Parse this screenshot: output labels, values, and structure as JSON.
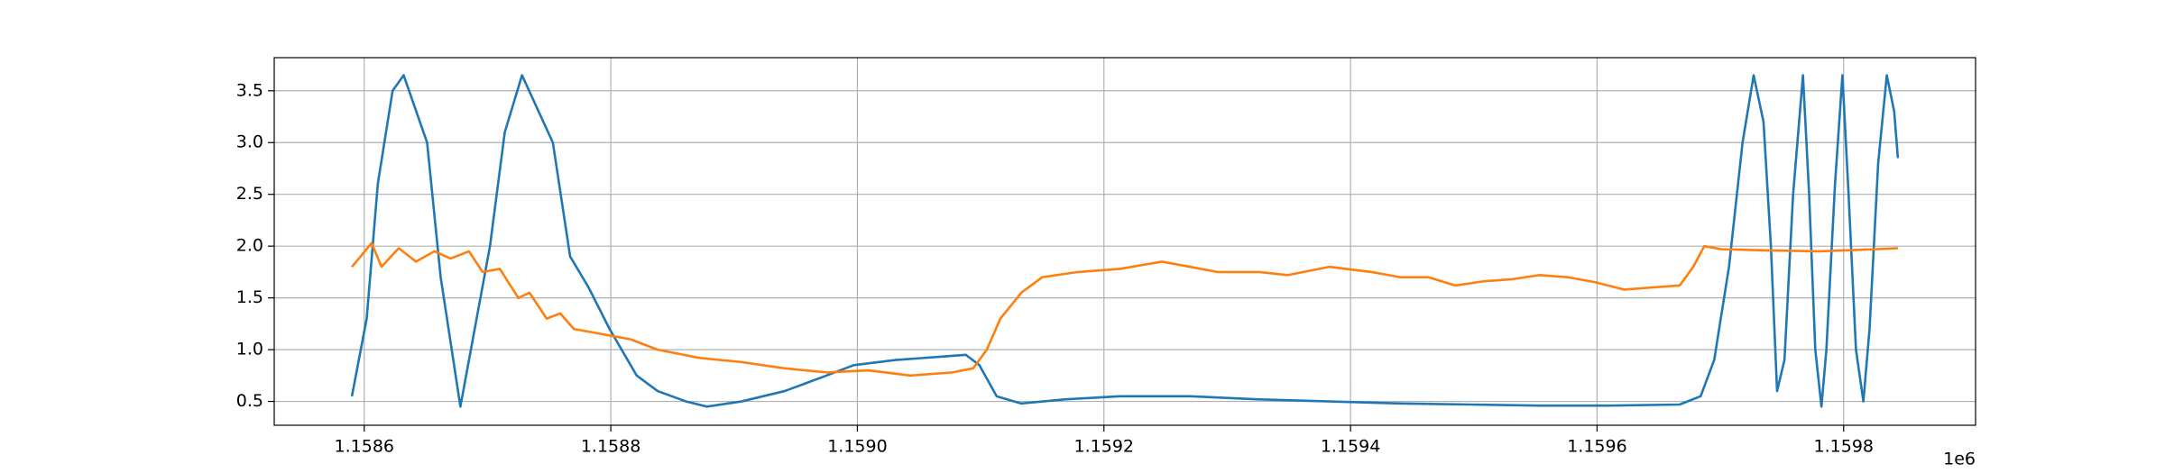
{
  "chart_data": {
    "type": "line",
    "x_offset_text": "1e6",
    "xlim": [
      1.158527,
      1.159907
    ],
    "ylim": [
      0.27,
      3.82
    ],
    "xticks": [
      1.1586,
      1.1588,
      1.159,
      1.1592,
      1.1594,
      1.1596,
      1.1598
    ],
    "xtick_labels": [
      "1.1586",
      "1.1588",
      "1.1590",
      "1.1592",
      "1.1594",
      "1.1596",
      "1.1598"
    ],
    "yticks": [
      0.5,
      {
        "value": 1,
        "label": "1.0"
      },
      1.5,
      {
        "value": 2,
        "label": "2.0"
      },
      2.5,
      {
        "value": 3,
        "label": "3.0"
      },
      3.5
    ],
    "grid": true,
    "series": [
      {
        "color": "#1f77b4",
        "x": [
          1.15859,
          1.158602,
          1.158611,
          1.158623,
          1.158632,
          1.158651,
          1.158662,
          1.158678,
          1.158702,
          1.158714,
          1.158728,
          1.158753,
          1.158767,
          1.158782,
          1.158799,
          1.158821,
          1.158838,
          1.158861,
          1.158878,
          1.158906,
          1.158941,
          1.158975,
          1.158997,
          1.159031,
          1.159065,
          1.159088,
          1.159099,
          1.159113,
          1.159133,
          1.159168,
          1.159213,
          1.15927,
          1.159326,
          1.159383,
          1.15944,
          1.159497,
          1.159553,
          1.15961,
          1.159667,
          1.159684,
          1.159695,
          1.159707,
          1.159718,
          1.159727,
          1.159735,
          1.159741,
          1.159746,
          1.159752,
          1.159759,
          1.159767,
          1.159772,
          1.159777,
          1.159782,
          1.159786,
          1.159793,
          1.159799,
          1.159804,
          1.15981,
          1.159816,
          1.159821,
          1.159828,
          1.159835,
          1.159841,
          1.159844
        ],
        "values": [
          0.55,
          1.3,
          2.6,
          3.5,
          3.65,
          3.0,
          1.7,
          0.45,
          2.0,
          3.1,
          3.65,
          3.0,
          1.9,
          1.6,
          1.2,
          0.75,
          0.6,
          0.5,
          0.45,
          0.5,
          0.6,
          0.75,
          0.85,
          0.9,
          0.93,
          0.95,
          0.85,
          0.55,
          0.48,
          0.52,
          0.55,
          0.55,
          0.52,
          0.5,
          0.48,
          0.47,
          0.46,
          0.46,
          0.47,
          0.55,
          0.9,
          1.8,
          3.0,
          3.65,
          3.2,
          2.0,
          0.6,
          0.9,
          2.5,
          3.65,
          2.5,
          1.0,
          0.45,
          1.0,
          2.6,
          3.65,
          2.5,
          1.0,
          0.5,
          1.2,
          2.8,
          3.65,
          3.3,
          2.85
        ]
      },
      {
        "color": "#ff7f0e",
        "x": [
          1.15859,
          1.158597,
          1.158606,
          1.158614,
          1.158628,
          1.158642,
          1.158657,
          1.15867,
          1.158685,
          1.158696,
          1.15871,
          1.158725,
          1.158734,
          1.158748,
          1.158759,
          1.15877,
          1.158793,
          1.158816,
          1.158838,
          1.158872,
          1.158906,
          1.158941,
          1.158975,
          1.159009,
          1.159043,
          1.159077,
          1.159094,
          1.159105,
          1.159116,
          1.159133,
          1.15915,
          1.159179,
          1.159213,
          1.159247,
          1.15927,
          1.159292,
          1.159326,
          1.159349,
          1.159383,
          1.159417,
          1.15944,
          1.159463,
          1.159485,
          1.159508,
          1.159531,
          1.159553,
          1.159576,
          1.159599,
          1.159622,
          1.159644,
          1.159667,
          1.159678,
          1.159687,
          1.159701,
          1.159735,
          1.15978,
          1.159826,
          1.159844
        ],
        "values": [
          1.8,
          1.9,
          2.03,
          1.8,
          1.98,
          1.85,
          1.95,
          1.88,
          1.95,
          1.75,
          1.78,
          1.5,
          1.55,
          1.3,
          1.35,
          1.2,
          1.15,
          1.1,
          1.0,
          0.92,
          0.88,
          0.82,
          0.78,
          0.8,
          0.75,
          0.78,
          0.82,
          1.0,
          1.3,
          1.55,
          1.7,
          1.75,
          1.78,
          1.85,
          1.8,
          1.75,
          1.75,
          1.72,
          1.8,
          1.75,
          1.7,
          1.7,
          1.62,
          1.66,
          1.68,
          1.72,
          1.7,
          1.65,
          1.58,
          1.6,
          1.62,
          1.8,
          2.0,
          1.97,
          1.96,
          1.95,
          1.97,
          1.98
        ]
      }
    ]
  }
}
